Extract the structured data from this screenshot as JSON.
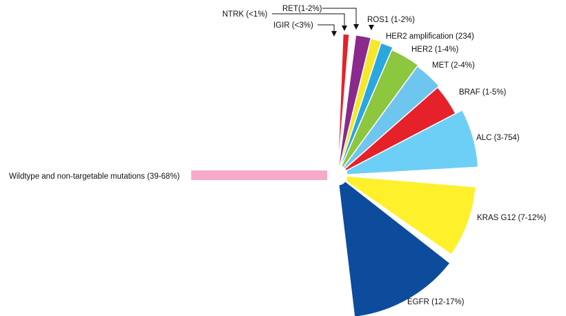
{
  "chart_data": {
    "type": "pie",
    "variant": "partial rose (fan) chart",
    "title": "",
    "slices": [
      {
        "label": "NTRK (<1%)",
        "color": "#e62129",
        "value": 1
      },
      {
        "label": "IGIR (<3%)",
        "color": "#ffffff",
        "value": 3
      },
      {
        "label": "RET(1-2%)",
        "color": "#8a2a8c",
        "value": 2
      },
      {
        "label": "ROS1 (1-2%)",
        "color": "#f5e82a",
        "value": 2
      },
      {
        "label": "HER2 amplification (234)",
        "color": "#2aa7df",
        "value": 2
      },
      {
        "label": "HER2 (1-4%)",
        "color": "#8dc63f",
        "value": 4
      },
      {
        "label": "MET (2-4%)",
        "color": "#6ec6ee",
        "value": 4
      },
      {
        "label": "BRAF (1-5%)",
        "color": "#e62129",
        "value": 5
      },
      {
        "label": "ALC (3-754)",
        "color": "#6ecff6",
        "value": 7
      },
      {
        "label": "KRAS G12 (7-12%)",
        "color": "#fef02a",
        "value": 12
      },
      {
        "label": "EGFR (12-17%)",
        "color": "#0d4c9c",
        "value": 17
      },
      {
        "label": "Wildtype and non-targetable mutations (39-68%)",
        "color": "#f6a9c9",
        "value": 68
      }
    ],
    "legend": "none",
    "labels": "outside slices with callout arrows for the smallest slices"
  }
}
